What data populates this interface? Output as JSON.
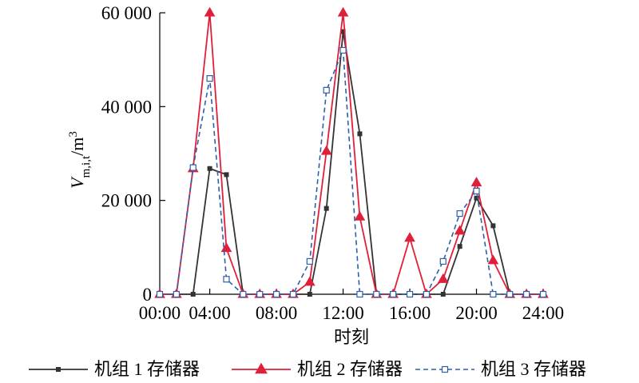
{
  "chart_data": {
    "type": "line",
    "xlabel": "时刻",
    "ylabel": {
      "var": "V",
      "sub": "m,i,t",
      "unit": "/m",
      "sup": "3"
    },
    "xlim": [
      1,
      24
    ],
    "ylim": [
      0,
      60000
    ],
    "xticks": [
      1,
      4,
      8,
      12,
      16,
      20,
      24
    ],
    "xtick_labels": [
      "00:00",
      "04:00",
      "08:00",
      "12:00",
      "16:00",
      "20:00",
      "24:00"
    ],
    "yticks": [
      0,
      20000,
      40000,
      60000
    ],
    "ytick_labels": [
      "0",
      "20 000",
      "40 000",
      "60 000"
    ],
    "grid": false,
    "legend_position": "bottom",
    "x": [
      1,
      2,
      3,
      4,
      5,
      6,
      7,
      8,
      9,
      10,
      11,
      12,
      13,
      14,
      15,
      16,
      17,
      18,
      19,
      20,
      21,
      22,
      23,
      24
    ],
    "series": [
      {
        "name": "机组 1 存储器",
        "color": "#333333",
        "marker": "square-filled",
        "dash": "solid",
        "values": [
          0,
          0,
          0,
          26800,
          25500,
          0,
          0,
          0,
          0,
          0,
          18300,
          56000,
          34200,
          0,
          0,
          0,
          0,
          0,
          10200,
          20500,
          14600,
          0,
          0,
          0
        ]
      },
      {
        "name": "机组 2 存储器",
        "color": "#e0203a",
        "marker": "triangle-filled",
        "dash": "solid",
        "values": [
          0,
          0,
          26800,
          60000,
          9800,
          0,
          0,
          0,
          0,
          2600,
          30500,
          60000,
          16500,
          0,
          0,
          12000,
          0,
          3200,
          13500,
          23800,
          7200,
          0,
          0,
          0
        ]
      },
      {
        "name": "机组 3 存储器",
        "color": "#2e5fa8",
        "marker": "square-open",
        "dash": "dashed",
        "values": [
          0,
          0,
          27000,
          46000,
          3200,
          0,
          0,
          0,
          0,
          7000,
          43500,
          52000,
          0,
          0,
          0,
          0,
          0,
          7000,
          17200,
          22000,
          0,
          0,
          0,
          0
        ]
      }
    ]
  }
}
